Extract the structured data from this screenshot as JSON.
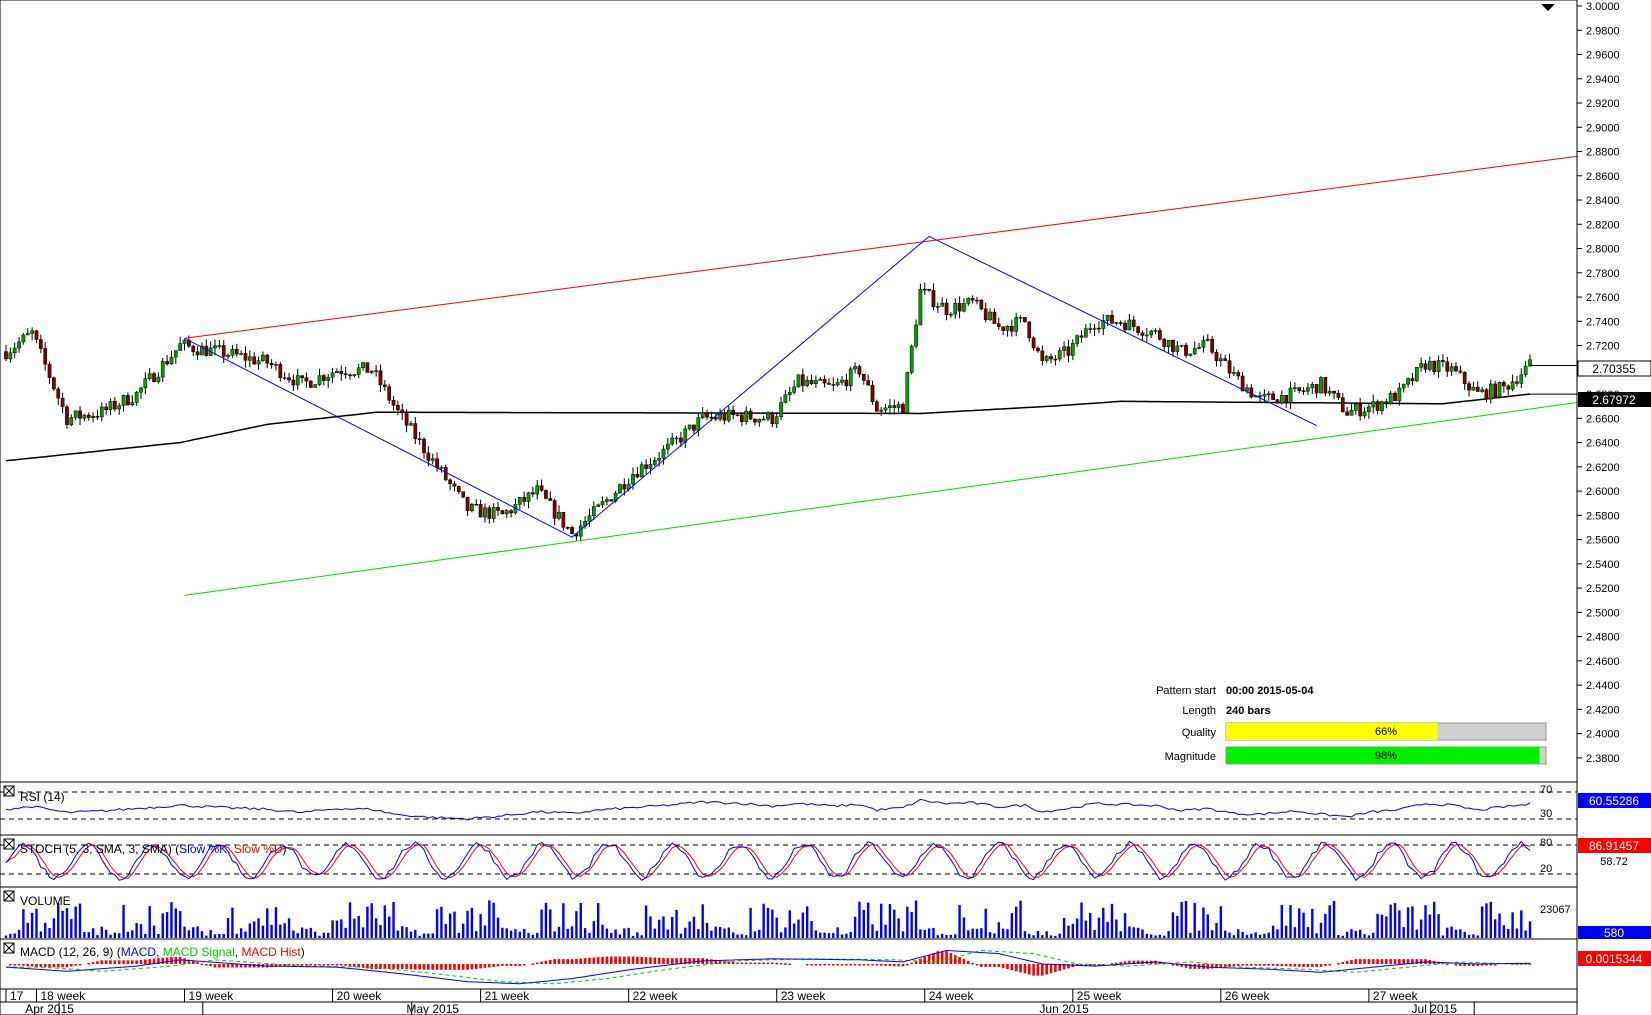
{
  "chart_data": {
    "type": "candlestick",
    "symbol_price": "2.70355",
    "main": {
      "ylim": [
        2.37,
        3.0
      ],
      "tick_step": 0.02,
      "y_ticks": [
        "3.0000",
        "2.9800",
        "2.9600",
        "2.9400",
        "2.9200",
        "2.9000",
        "2.8800",
        "2.8600",
        "2.8400",
        "2.8200",
        "2.8000",
        "2.7800",
        "2.7600",
        "2.7400",
        "2.7200",
        "2.7000",
        "2.6800",
        "2.6600",
        "2.6400",
        "2.6200",
        "2.6000",
        "2.5800",
        "2.5600",
        "2.5400",
        "2.5200",
        "2.5000",
        "2.4800",
        "2.4600",
        "2.4400",
        "2.4200",
        "2.4000",
        "2.3800"
      ],
      "current_price": "2.70355",
      "ma_value": "2.67972",
      "price_anchors": [
        [
          0,
          2.715
        ],
        [
          6,
          2.73
        ],
        [
          14,
          2.66
        ],
        [
          22,
          2.665
        ],
        [
          30,
          2.68
        ],
        [
          40,
          2.72
        ],
        [
          50,
          2.714
        ],
        [
          60,
          2.706
        ],
        [
          68,
          2.688
        ],
        [
          76,
          2.7
        ],
        [
          84,
          2.7
        ],
        [
          90,
          2.665
        ],
        [
          98,
          2.625
        ],
        [
          106,
          2.585
        ],
        [
          114,
          2.58
        ],
        [
          122,
          2.6
        ],
        [
          130,
          2.565
        ],
        [
          136,
          2.585
        ],
        [
          144,
          2.615
        ],
        [
          152,
          2.635
        ],
        [
          160,
          2.66
        ],
        [
          168,
          2.662
        ],
        [
          176,
          2.66
        ],
        [
          182,
          2.69
        ],
        [
          190,
          2.685
        ],
        [
          196,
          2.7
        ],
        [
          200,
          2.668
        ],
        [
          206,
          2.67
        ],
        [
          210,
          2.765
        ],
        [
          216,
          2.75
        ],
        [
          222,
          2.755
        ],
        [
          228,
          2.735
        ],
        [
          234,
          2.74
        ],
        [
          238,
          2.705
        ],
        [
          244,
          2.715
        ],
        [
          250,
          2.74
        ],
        [
          256,
          2.74
        ],
        [
          264,
          2.73
        ],
        [
          270,
          2.715
        ],
        [
          276,
          2.72
        ],
        [
          282,
          2.695
        ],
        [
          288,
          2.675
        ],
        [
          296,
          2.68
        ],
        [
          302,
          2.688
        ],
        [
          308,
          2.665
        ],
        [
          314,
          2.67
        ],
        [
          320,
          2.68
        ],
        [
          326,
          2.705
        ],
        [
          332,
          2.7
        ],
        [
          338,
          2.68
        ],
        [
          344,
          2.685
        ],
        [
          350,
          2.7036
        ]
      ]
    },
    "pattern_lines": {
      "resistance": {
        "from": [
          41,
          2.726
        ],
        "to": [
          347,
          2.876
        ]
      },
      "support": {
        "from": [
          41,
          2.514
        ],
        "to": [
          347,
          2.673
        ]
      },
      "zigzag": [
        [
          41,
          2.726
        ],
        [
          130,
          2.562
        ],
        [
          212,
          2.81
        ],
        [
          301,
          2.654
        ]
      ]
    },
    "moving_average": [
      [
        0,
        2.625
      ],
      [
        40,
        2.64
      ],
      [
        60,
        2.655
      ],
      [
        85,
        2.665
      ],
      [
        210,
        2.664
      ],
      [
        240,
        2.67
      ],
      [
        256,
        2.674
      ],
      [
        330,
        2.672
      ],
      [
        350,
        2.68
      ]
    ],
    "x_axis": {
      "week_labels": [
        {
          "label": "17",
          "bar": 0
        },
        {
          "label": "18 week",
          "bar": 7
        },
        {
          "label": "19 week",
          "bar": 41
        },
        {
          "label": "20 week",
          "bar": 75
        },
        {
          "label": "21 week",
          "bar": 109
        },
        {
          "label": "22 week",
          "bar": 143
        },
        {
          "label": "23 week",
          "bar": 177
        },
        {
          "label": "24 week",
          "bar": 211
        },
        {
          "label": "25 week",
          "bar": 245
        },
        {
          "label": "26 week",
          "bar": 279
        },
        {
          "label": "27 week",
          "bar": 313
        }
      ],
      "month_labels": [
        {
          "label": "Apr 2015",
          "bar": 10
        },
        {
          "label": "May 2015",
          "bar": 98
        },
        {
          "label": "Jun 2015",
          "bar": 243
        },
        {
          "label": "Jul 2015",
          "bar": 328
        }
      ]
    },
    "pattern_info": {
      "start_label": "Pattern start",
      "start_value": "00:00 2015-05-04",
      "length_label": "Length",
      "length_value": "240 bars",
      "quality_label": "Quality",
      "quality_pct": 66,
      "quality_text": "66%",
      "magnitude_label": "Magnitude",
      "magnitude_pct": 98,
      "magnitude_text": "98%"
    },
    "rsi": {
      "title": "RSI (14)",
      "levels": [
        "70",
        "30"
      ],
      "value": "60.55286",
      "anchors": [
        [
          0,
          48
        ],
        [
          6,
          55
        ],
        [
          14,
          40
        ],
        [
          22,
          44
        ],
        [
          30,
          50
        ],
        [
          40,
          58
        ],
        [
          50,
          52
        ],
        [
          60,
          48
        ],
        [
          68,
          40
        ],
        [
          76,
          50
        ],
        [
          84,
          48
        ],
        [
          90,
          35
        ],
        [
          98,
          28
        ],
        [
          106,
          25
        ],
        [
          114,
          32
        ],
        [
          122,
          42
        ],
        [
          130,
          38
        ],
        [
          136,
          46
        ],
        [
          144,
          52
        ],
        [
          152,
          58
        ],
        [
          160,
          66
        ],
        [
          168,
          63
        ],
        [
          176,
          56
        ],
        [
          182,
          62
        ],
        [
          190,
          56
        ],
        [
          196,
          60
        ],
        [
          200,
          46
        ],
        [
          206,
          52
        ],
        [
          210,
          70
        ],
        [
          216,
          62
        ],
        [
          222,
          64
        ],
        [
          228,
          54
        ],
        [
          234,
          58
        ],
        [
          238,
          42
        ],
        [
          244,
          50
        ],
        [
          250,
          62
        ],
        [
          256,
          60
        ],
        [
          264,
          57
        ],
        [
          270,
          45
        ],
        [
          276,
          50
        ],
        [
          282,
          38
        ],
        [
          288,
          36
        ],
        [
          296,
          44
        ],
        [
          302,
          36
        ],
        [
          308,
          30
        ],
        [
          314,
          42
        ],
        [
          320,
          47
        ],
        [
          326,
          62
        ],
        [
          332,
          58
        ],
        [
          338,
          46
        ],
        [
          344,
          54
        ],
        [
          350,
          60.5
        ]
      ]
    },
    "stoch": {
      "title": "STOCH (5, 3, SMA, 3, SMA)",
      "k_label": "Slow %K",
      "d_label": "Slow %D",
      "levels": [
        "80",
        "20"
      ],
      "value": "86.91457",
      "value2": "58.72"
    },
    "volume": {
      "title": "VOLUME",
      "level": "23067",
      "value": "580"
    },
    "macd": {
      "title": "MACD (12, 26, 9)",
      "macd_label": "MACD",
      "signal_label": "MACD Signal",
      "hist_label": "MACD Hist",
      "value": "0.0015344",
      "anchors": [
        [
          0,
          -0.006
        ],
        [
          14,
          -0.014
        ],
        [
          30,
          -0.004
        ],
        [
          40,
          0.008
        ],
        [
          60,
          -0.004
        ],
        [
          76,
          -0.006
        ],
        [
          90,
          -0.018
        ],
        [
          106,
          -0.034
        ],
        [
          118,
          -0.038
        ],
        [
          130,
          -0.028
        ],
        [
          144,
          -0.01
        ],
        [
          160,
          0.006
        ],
        [
          176,
          0.01
        ],
        [
          196,
          0.008
        ],
        [
          206,
          0.004
        ],
        [
          216,
          0.026
        ],
        [
          228,
          0.02
        ],
        [
          238,
          0.0
        ],
        [
          250,
          -0.004
        ],
        [
          264,
          0.004
        ],
        [
          276,
          -0.006
        ],
        [
          290,
          -0.01
        ],
        [
          302,
          -0.016
        ],
        [
          314,
          -0.006
        ],
        [
          326,
          0.004
        ],
        [
          338,
          0.0
        ],
        [
          350,
          0.0015
        ]
      ]
    }
  }
}
